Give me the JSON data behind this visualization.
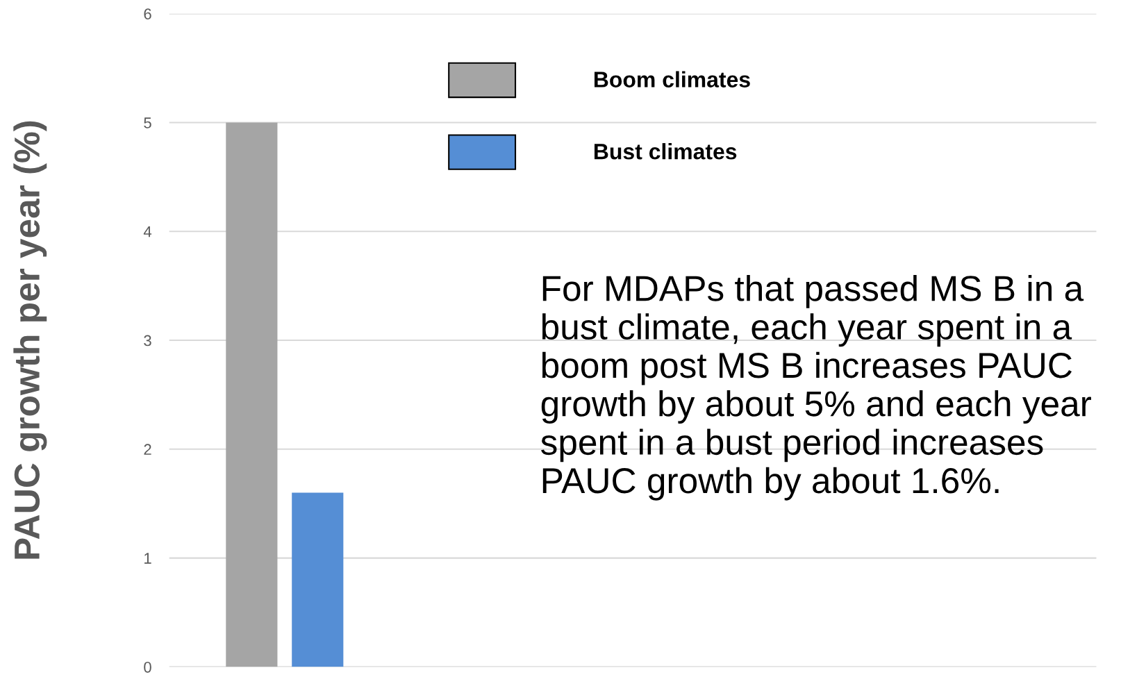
{
  "chart_data": {
    "type": "bar",
    "ylabel": "PAUC growth per year (%)",
    "categories": [
      null
    ],
    "series": [
      {
        "name": "Boom climates",
        "color": "#a5a5a5",
        "values": [
          5
        ]
      },
      {
        "name": "Bust climates",
        "color": "#558ed5",
        "values": [
          1.6
        ]
      }
    ],
    "ylim": [
      0,
      6
    ],
    "yticks": [
      0,
      1,
      2,
      3,
      4,
      5,
      6
    ],
    "grid": "y",
    "legend": "top",
    "annotations": [
      "For MDAPs that passed MS B in a\nbust climate, each year spent in a\nboom post MS B increases PAUC\ngrowth by about 5% and each year\nspent in a bust period increases\nPAUC growth by about 1.6%."
    ]
  }
}
